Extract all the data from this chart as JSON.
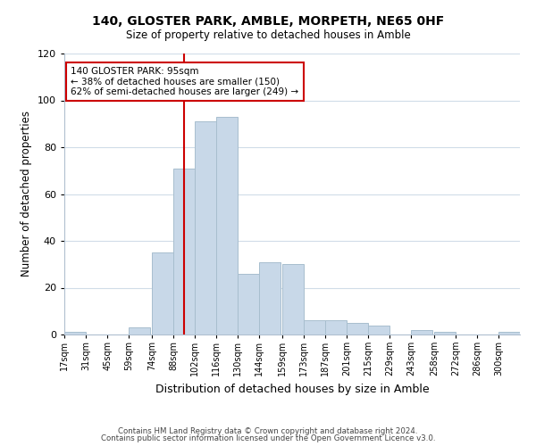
{
  "title": "140, GLOSTER PARK, AMBLE, MORPETH, NE65 0HF",
  "subtitle": "Size of property relative to detached houses in Amble",
  "xlabel": "Distribution of detached houses by size in Amble",
  "ylabel": "Number of detached properties",
  "bar_color": "#c8d8e8",
  "bar_edge_color": "#a8bece",
  "bins": [
    "17sqm",
    "31sqm",
    "45sqm",
    "59sqm",
    "74sqm",
    "88sqm",
    "102sqm",
    "116sqm",
    "130sqm",
    "144sqm",
    "159sqm",
    "173sqm",
    "187sqm",
    "201sqm",
    "215sqm",
    "229sqm",
    "243sqm",
    "258sqm",
    "272sqm",
    "286sqm",
    "300sqm"
  ],
  "values": [
    1,
    0,
    0,
    3,
    35,
    71,
    91,
    93,
    26,
    31,
    30,
    6,
    6,
    5,
    4,
    0,
    2,
    1,
    0,
    0,
    1
  ],
  "bin_edges": [
    17,
    31,
    45,
    59,
    74,
    88,
    102,
    116,
    130,
    144,
    159,
    173,
    187,
    201,
    215,
    229,
    243,
    258,
    272,
    286,
    300
  ],
  "ylim": [
    0,
    120
  ],
  "yticks": [
    0,
    20,
    40,
    60,
    80,
    100,
    120
  ],
  "vline_x": 95,
  "vline_color": "#cc0000",
  "annotation_title": "140 GLOSTER PARK: 95sqm",
  "annotation_line1": "← 38% of detached houses are smaller (150)",
  "annotation_line2": "62% of semi-detached houses are larger (249) →",
  "annotation_box_color": "#ffffff",
  "annotation_box_edge_color": "#cc0000",
  "footer1": "Contains HM Land Registry data © Crown copyright and database right 2024.",
  "footer2": "Contains public sector information licensed under the Open Government Licence v3.0.",
  "background_color": "#ffffff",
  "grid_color": "#d0dce8"
}
